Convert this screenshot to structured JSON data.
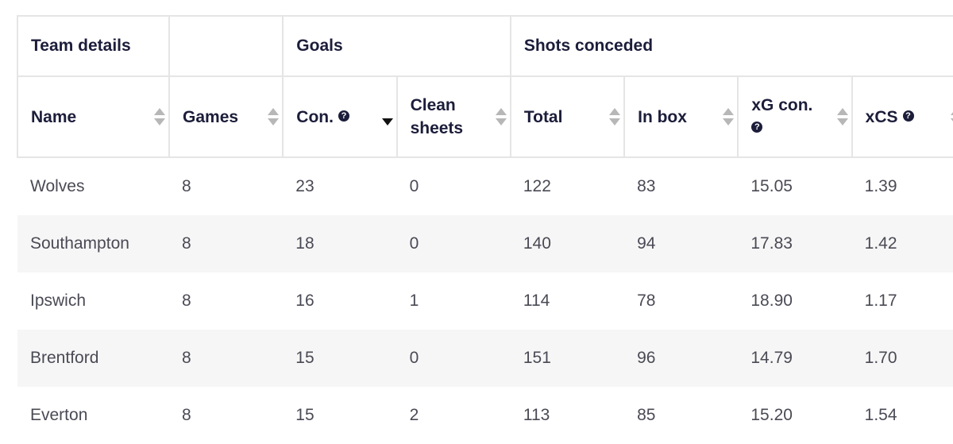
{
  "table": {
    "groups": {
      "team_details": "Team details",
      "blank": "",
      "goals": "Goals",
      "shots_conceded": "Shots conceded"
    },
    "columns": {
      "name": "Name",
      "games": "Games",
      "con": "Con.",
      "clean_sheets": "Clean sheets",
      "total": "Total",
      "in_box": "In box",
      "xg_con": "xG con.",
      "xcs": "xCS"
    },
    "help_icon": "?",
    "sorted_column": "Con.",
    "sort_direction": "descending",
    "rows": [
      {
        "name": "Wolves",
        "games": "8",
        "con": "23",
        "clean_sheets": "0",
        "total": "122",
        "in_box": "83",
        "xg_con": "15.05",
        "xcs": "1.39"
      },
      {
        "name": "Southampton",
        "games": "8",
        "con": "18",
        "clean_sheets": "0",
        "total": "140",
        "in_box": "94",
        "xg_con": "17.83",
        "xcs": "1.42"
      },
      {
        "name": "Ipswich",
        "games": "8",
        "con": "16",
        "clean_sheets": "1",
        "total": "114",
        "in_box": "78",
        "xg_con": "18.90",
        "xcs": "1.17"
      },
      {
        "name": "Brentford",
        "games": "8",
        "con": "15",
        "clean_sheets": "0",
        "total": "151",
        "in_box": "96",
        "xg_con": "14.79",
        "xcs": "1.70"
      },
      {
        "name": "Everton",
        "games": "8",
        "con": "15",
        "clean_sheets": "2",
        "total": "113",
        "in_box": "85",
        "xg_con": "15.20",
        "xcs": "1.54"
      }
    ]
  },
  "colors": {
    "heading_text": "#1c1d3a",
    "body_text": "#4a4a55",
    "border": "#e5e5e5",
    "alt_row": "#f6f6f6"
  }
}
